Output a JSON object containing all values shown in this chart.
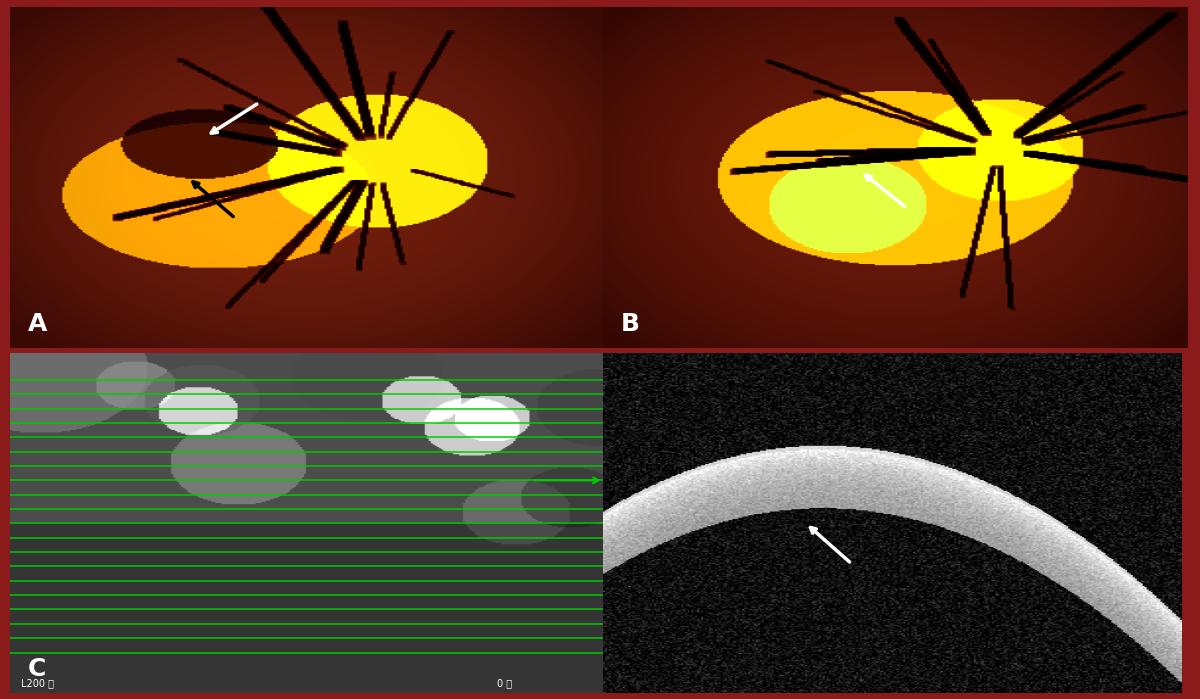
{
  "figure_width": 12.0,
  "figure_height": 6.99,
  "background_color": "#8B1A1A",
  "border_color": "#8B1A1A",
  "panel_border": 3,
  "label_A": "A",
  "label_B": "B",
  "label_C": "C",
  "label_fontsize": 18,
  "label_color_white": "white",
  "label_color_dark": "white",
  "green_line_color": "#00CC00",
  "green_arrow_color": "#00CC00",
  "num_green_lines": 20,
  "scale_text_C": "L200 平",
  "scale_text_D": "0 平"
}
